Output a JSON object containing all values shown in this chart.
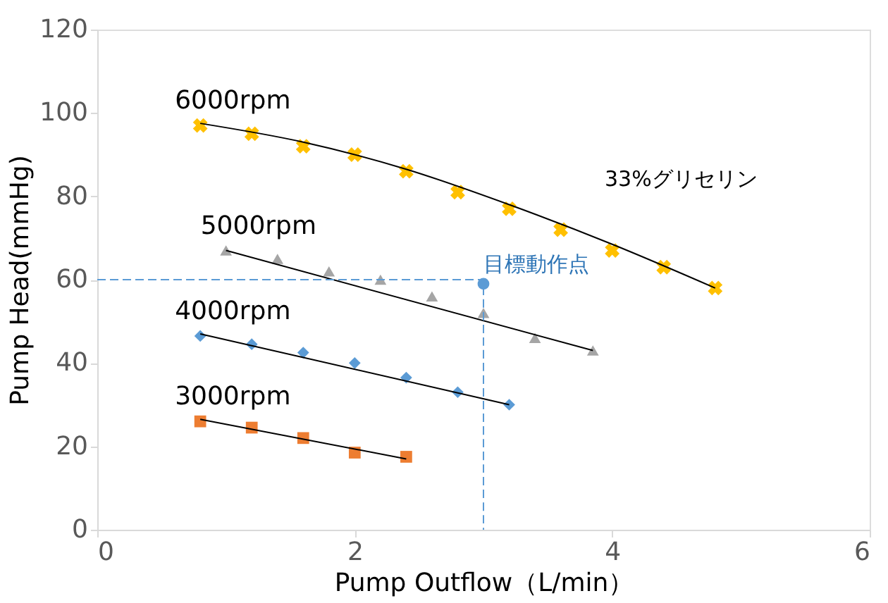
{
  "chart_data": {
    "type": "scatter",
    "xlabel": "Pump Outflow（L/min）",
    "ylabel": "Pump Head(mmHg)",
    "xlim": [
      0,
      6
    ],
    "xticks": [
      0,
      2,
      4,
      6
    ],
    "ylim": [
      0,
      120
    ],
    "yticks": [
      0,
      20,
      40,
      60,
      80,
      100,
      120
    ],
    "grid": false,
    "annotations": [
      "33%グリセリン",
      {
        "text": "目標動作点",
        "x": 3,
        "y": 59
      }
    ],
    "series": [
      {
        "name": "6000rpm",
        "marker": "cross",
        "color": "#ffc000",
        "x": [
          0.8,
          1.2,
          1.6,
          2.0,
          2.4,
          2.8,
          3.2,
          3.6,
          4.0,
          4.4,
          4.8
        ],
        "values": [
          97,
          95,
          92,
          90,
          86,
          81,
          77,
          72,
          67,
          63,
          58
        ]
      },
      {
        "name": "5000rpm",
        "marker": "triangle",
        "color": "#a5a5a5",
        "x": [
          1.0,
          1.4,
          1.8,
          2.2,
          2.6,
          3.0,
          3.4,
          3.85
        ],
        "values": [
          67,
          65,
          62,
          60,
          56,
          52,
          46,
          43
        ]
      },
      {
        "name": "4000rpm",
        "marker": "diamond",
        "color": "#5b9bd5",
        "x": [
          0.8,
          1.2,
          1.6,
          2.0,
          2.4,
          2.8,
          3.2
        ],
        "values": [
          46.5,
          44.5,
          42.5,
          40,
          36.5,
          33,
          30
        ]
      },
      {
        "name": "3000rpm",
        "marker": "square",
        "color": "#ed7d31",
        "x": [
          0.8,
          1.2,
          1.6,
          2.0,
          2.4
        ],
        "values": [
          26,
          24.5,
          22,
          18.5,
          17.5
        ]
      },
      {
        "type": "line",
        "marker": "none",
        "line_style": "solid",
        "color": "#000000",
        "x": [
          0.8,
          1.6,
          2.4,
          3.2,
          4.0,
          4.8
        ],
        "values": [
          97.5,
          93,
          86.5,
          78,
          68.5,
          58
        ]
      },
      {
        "type": "line",
        "marker": "none",
        "line_style": "solid",
        "color": "#000000",
        "x": [
          1.0,
          3.85
        ],
        "values": [
          67,
          43
        ]
      },
      {
        "type": "line",
        "marker": "none",
        "line_style": "solid",
        "color": "#000000",
        "x": [
          0.8,
          3.2
        ],
        "values": [
          47,
          30
        ]
      },
      {
        "type": "line",
        "marker": "none",
        "line_style": "solid",
        "color": "#000000",
        "x": [
          0.8,
          2.4
        ],
        "values": [
          26.5,
          17
        ]
      },
      {
        "type": "line",
        "marker": "none",
        "line_style": "dashed",
        "color": "#5b9bd5",
        "x": [
          0,
          3,
          3
        ],
        "values": [
          60,
          60,
          0
        ]
      },
      {
        "marker": "circle",
        "color": "#5b9bd5",
        "x": [
          3
        ],
        "values": [
          59
        ]
      }
    ]
  }
}
